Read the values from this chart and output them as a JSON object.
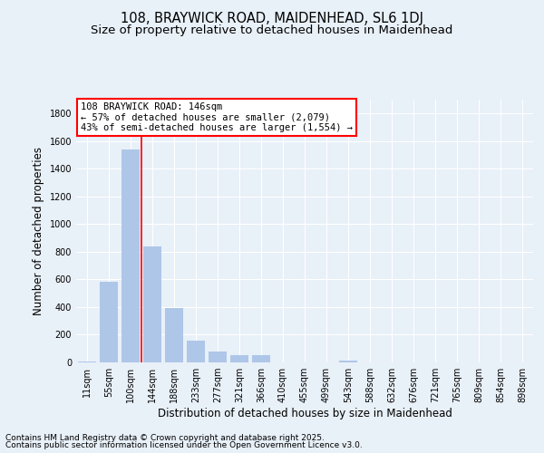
{
  "title1": "108, BRAYWICK ROAD, MAIDENHEAD, SL6 1DJ",
  "title2": "Size of property relative to detached houses in Maidenhead",
  "xlabel": "Distribution of detached houses by size in Maidenhead",
  "ylabel": "Number of detached properties",
  "categories": [
    "11sqm",
    "55sqm",
    "100sqm",
    "144sqm",
    "188sqm",
    "233sqm",
    "277sqm",
    "321sqm",
    "366sqm",
    "410sqm",
    "455sqm",
    "499sqm",
    "543sqm",
    "588sqm",
    "632sqm",
    "676sqm",
    "721sqm",
    "765sqm",
    "809sqm",
    "854sqm",
    "898sqm"
  ],
  "values": [
    8,
    580,
    1540,
    840,
    390,
    160,
    80,
    55,
    50,
    0,
    0,
    0,
    10,
    0,
    0,
    0,
    0,
    0,
    0,
    0,
    0
  ],
  "bar_color": "#aec6e8",
  "vline_color": "red",
  "vline_x": 2.5,
  "annotation_text_line1": "108 BRAYWICK ROAD: 146sqm",
  "annotation_text_line2": "← 57% of detached houses are smaller (2,079)",
  "annotation_text_line3": "43% of semi-detached houses are larger (1,554) →",
  "ylim": [
    0,
    1900
  ],
  "yticks": [
    0,
    200,
    400,
    600,
    800,
    1000,
    1200,
    1400,
    1600,
    1800
  ],
  "footer1": "Contains HM Land Registry data © Crown copyright and database right 2025.",
  "footer2": "Contains public sector information licensed under the Open Government Licence v3.0.",
  "bg_color": "#e8f0f8",
  "plot_bg_color": "#e8f0f8",
  "grid_color": "white",
  "title_fontsize": 10.5,
  "subtitle_fontsize": 9.5,
  "axis_label_fontsize": 8.5,
  "tick_fontsize": 7,
  "annotation_fontsize": 7.5,
  "footer_fontsize": 6.5
}
